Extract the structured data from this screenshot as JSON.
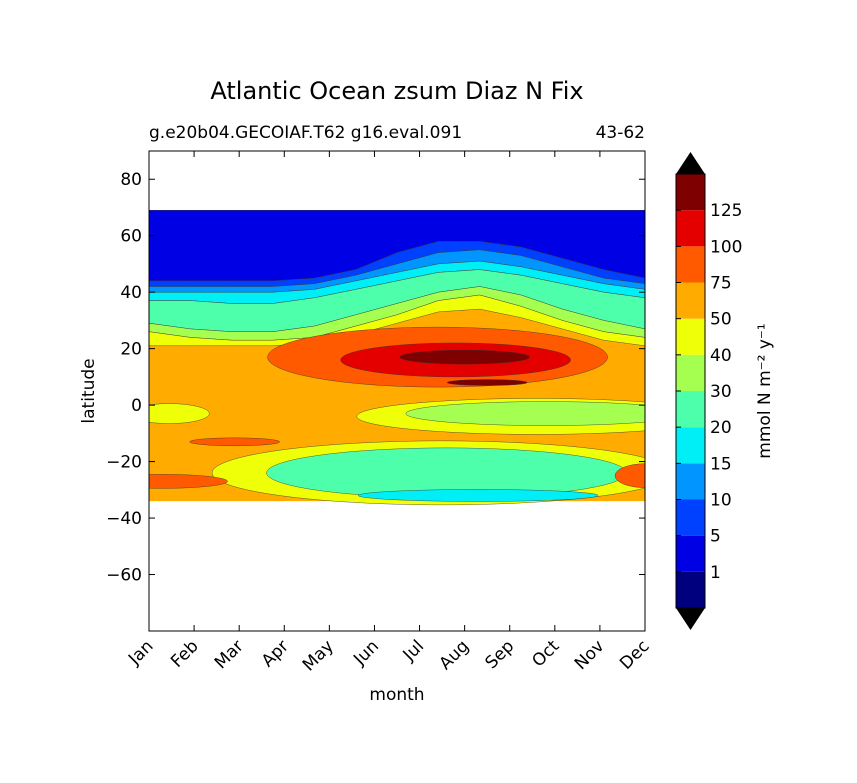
{
  "chart_data": {
    "type": "heatmap",
    "title": "Atlantic Ocean zsum Diaz N Fix",
    "subtitle_left": "g.e20b04.GECOIAF.T62 g16.eval.091",
    "subtitle_right": "43-62",
    "xlabel": "month",
    "ylabel": "latitude",
    "x_ticks": [
      "Jan",
      "Feb",
      "Mar",
      "Apr",
      "May",
      "Jun",
      "Jul",
      "Aug",
      "Sep",
      "Oct",
      "Nov",
      "Dec"
    ],
    "y_ticks": [
      80,
      60,
      40,
      20,
      0,
      -20,
      -40,
      -60
    ],
    "ylim": [
      -80,
      90
    ],
    "colorbar": {
      "label": "mmol N m⁻² y⁻¹",
      "ticks": [
        "1",
        "5",
        "10",
        "15",
        "20",
        "30",
        "40",
        "50",
        "75",
        "100",
        "125"
      ],
      "bounds": [
        1,
        5,
        10,
        15,
        20,
        30,
        40,
        50,
        75,
        100,
        125
      ],
      "colors": [
        "#00007f",
        "#0000e5",
        "#0040ff",
        "#0095ff",
        "#00eef5",
        "#4dffaa",
        "#a5ff50",
        "#efff07",
        "#ffab00",
        "#ff5a00",
        "#e50000",
        "#7f0000"
      ],
      "extend": "both"
    },
    "data_extent": {
      "lat_min": -34,
      "lat_max": 69
    },
    "contour_bands": [
      {
        "level": 0,
        "lower": [
          68,
          68,
          68,
          68,
          68,
          68,
          68,
          68,
          68,
          68,
          68,
          68,
          68
        ],
        "upper": [
          69,
          69,
          69,
          69,
          69,
          69,
          69,
          69,
          69,
          69,
          69,
          69,
          69
        ]
      },
      {
        "level": 1,
        "lower": [
          44,
          44,
          44,
          44,
          45,
          48,
          54,
          58,
          58,
          56,
          52,
          48,
          45
        ],
        "upper": [
          69,
          69,
          69,
          69,
          69,
          69,
          69,
          69,
          69,
          69,
          69,
          69,
          69
        ]
      },
      {
        "level": 2,
        "lower": [
          42,
          42,
          42,
          42,
          43,
          46,
          50,
          54,
          55,
          53,
          49,
          45,
          43
        ],
        "upper": [
          44,
          44,
          44,
          44,
          45,
          48,
          54,
          58,
          58,
          56,
          52,
          48,
          45
        ]
      },
      {
        "level": 3,
        "lower": [
          40,
          40,
          40,
          40,
          41,
          44,
          47,
          50,
          51,
          49,
          46,
          43,
          41
        ],
        "upper": [
          42,
          42,
          42,
          42,
          43,
          46,
          50,
          54,
          55,
          53,
          49,
          45,
          43
        ]
      },
      {
        "level": 4,
        "lower": [
          37,
          37,
          36,
          36,
          38,
          41,
          44,
          47,
          48,
          46,
          43,
          40,
          38
        ],
        "upper": [
          40,
          40,
          40,
          40,
          41,
          44,
          47,
          50,
          51,
          49,
          46,
          43,
          41
        ]
      },
      {
        "level": 5,
        "lower": [
          29,
          27,
          26,
          26,
          28,
          32,
          36,
          40,
          42,
          39,
          34,
          30,
          27
        ],
        "upper": [
          37,
          37,
          36,
          36,
          38,
          41,
          44,
          47,
          48,
          46,
          43,
          40,
          38
        ]
      },
      {
        "level": 6,
        "lower": [
          26,
          24,
          23,
          23,
          24,
          28,
          32,
          37,
          39,
          35,
          30,
          26,
          24
        ],
        "upper": [
          29,
          27,
          26,
          26,
          28,
          32,
          36,
          40,
          42,
          39,
          34,
          30,
          27
        ]
      },
      {
        "level": 7,
        "lower": [
          21,
          21,
          21,
          21,
          22,
          25,
          29,
          33,
          34,
          31,
          27,
          23,
          21
        ],
        "upper": [
          26,
          24,
          23,
          23,
          24,
          28,
          32,
          37,
          39,
          35,
          30,
          26,
          24
        ]
      }
    ],
    "contour_blobs": [
      {
        "level": 7,
        "x": [
          0,
          0.4,
          1,
          0.4,
          0
        ],
        "lower": [
          -4,
          -3,
          -2,
          -4,
          -4
        ],
        "upper": [
          3,
          3,
          1,
          1,
          3
        ],
        "note_is_yellow_blob": true
      }
    ]
  }
}
